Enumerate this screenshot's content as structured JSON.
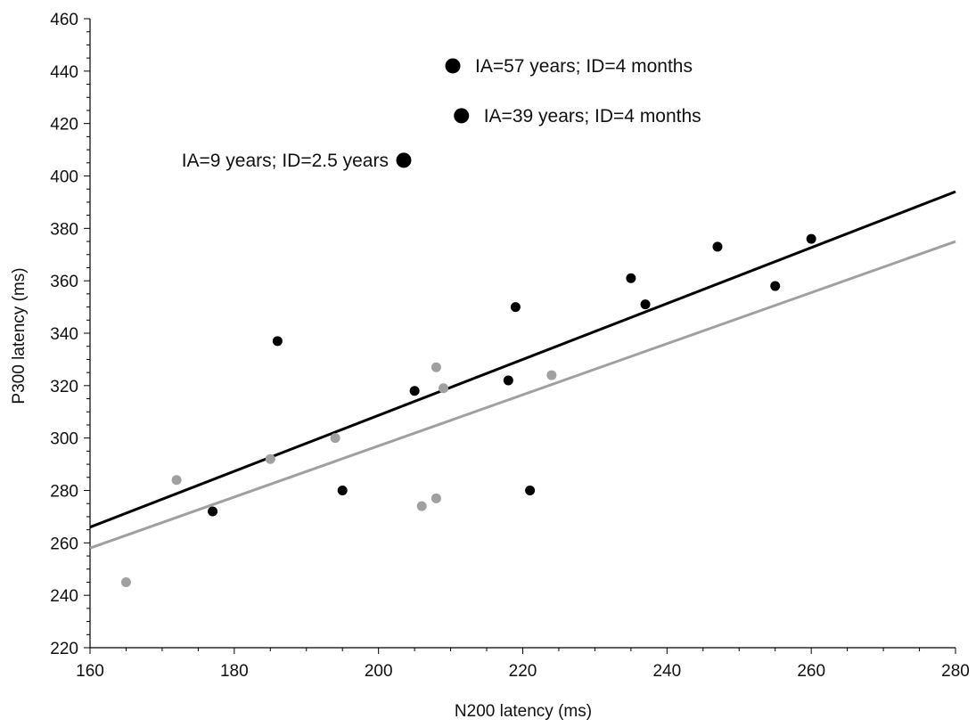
{
  "chart_data": {
    "type": "scatter",
    "xlabel": "N200 latency (ms)",
    "ylabel": "P300 latency (ms)",
    "xlim": [
      160,
      280
    ],
    "ylim": [
      220,
      460
    ],
    "x_ticks": [
      160,
      180,
      200,
      220,
      240,
      260,
      280
    ],
    "y_ticks": [
      220,
      240,
      260,
      280,
      300,
      320,
      340,
      360,
      380,
      400,
      420,
      440,
      460
    ],
    "grid": false,
    "legend": "none",
    "series": [
      {
        "color": "#000000",
        "points": [
          {
            "x": 177,
            "y": 272
          },
          {
            "x": 186,
            "y": 337
          },
          {
            "x": 195,
            "y": 280
          },
          {
            "x": 205,
            "y": 318
          },
          {
            "x": 218,
            "y": 322
          },
          {
            "x": 219,
            "y": 350
          },
          {
            "x": 221,
            "y": 280
          },
          {
            "x": 235,
            "y": 361
          },
          {
            "x": 237,
            "y": 351
          },
          {
            "x": 247,
            "y": 373
          },
          {
            "x": 255,
            "y": 358
          },
          {
            "x": 260,
            "y": 376
          }
        ],
        "fit_line": {
          "x": [
            160,
            280
          ],
          "y": [
            266,
            394
          ]
        }
      },
      {
        "color": "#a0a0a0",
        "points": [
          {
            "x": 165,
            "y": 245
          },
          {
            "x": 172,
            "y": 284
          },
          {
            "x": 185,
            "y": 292
          },
          {
            "x": 194,
            "y": 300
          },
          {
            "x": 206,
            "y": 274
          },
          {
            "x": 208,
            "y": 277
          },
          {
            "x": 208,
            "y": 327
          },
          {
            "x": 209,
            "y": 319
          },
          {
            "x": 224,
            "y": 324
          }
        ],
        "fit_line": {
          "x": [
            160,
            280
          ],
          "y": [
            258,
            375
          ]
        }
      }
    ],
    "outliers": [
      {
        "x": 210.3,
        "y": 442,
        "label": "IA=57 years; ID=4 months",
        "label_side": "right"
      },
      {
        "x": 211.5,
        "y": 423,
        "label": "IA=39 years; ID=4 months",
        "label_side": "right"
      },
      {
        "x": 203.5,
        "y": 406,
        "label": "IA=9 years; ID=2.5 years",
        "label_side": "left"
      }
    ]
  }
}
